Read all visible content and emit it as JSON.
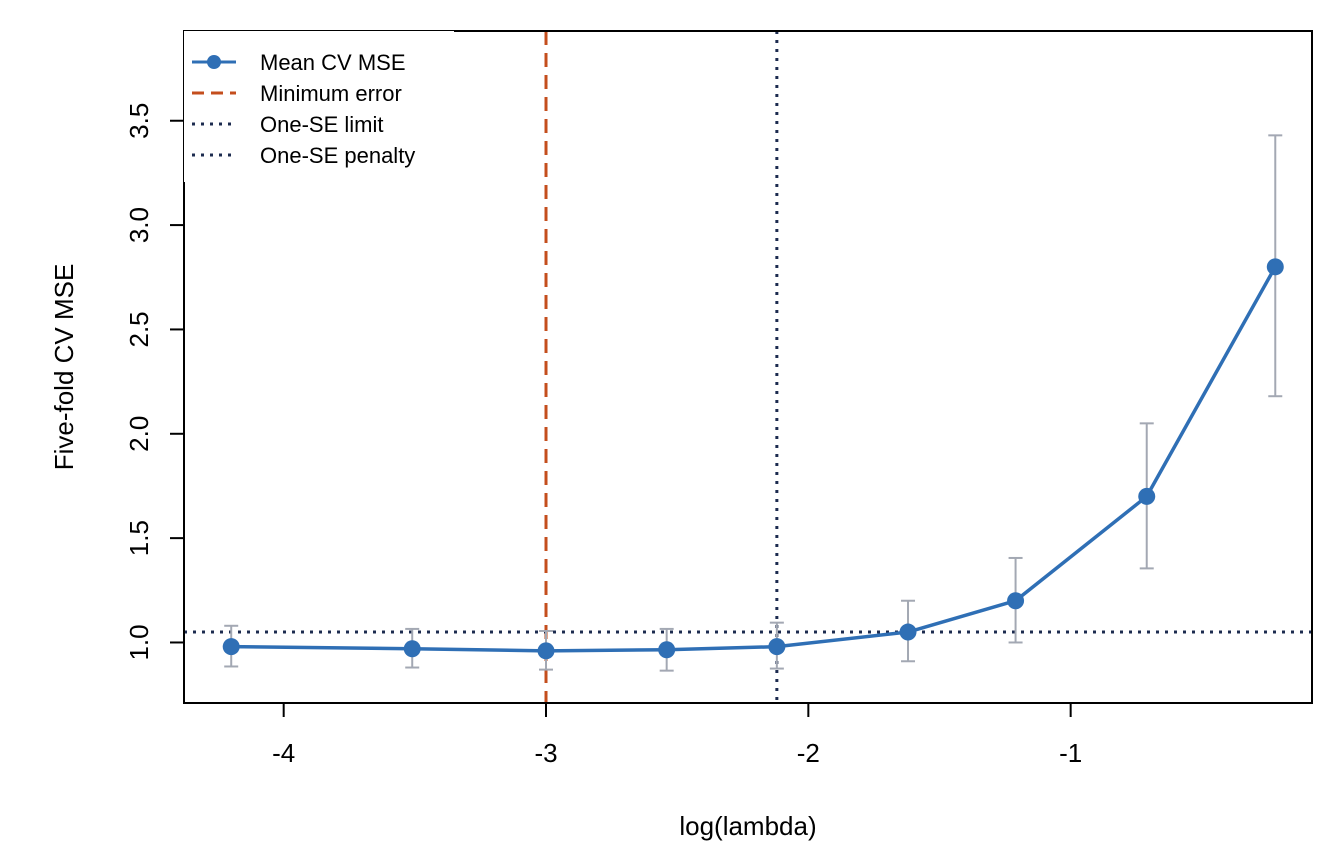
{
  "chart_data": {
    "type": "line",
    "title": "",
    "xlabel": "log(lambda)",
    "ylabel": "Five-fold CV MSE",
    "xlim": [
      -4.38,
      -0.08
    ],
    "ylim": [
      0.71,
      3.93
    ],
    "xticks": [
      -4,
      -3,
      -2,
      -1
    ],
    "xtick_labels": [
      "-4",
      "-3",
      "-2",
      "-1"
    ],
    "yticks": [
      1.0,
      1.5,
      2.0,
      2.5,
      3.0,
      3.5
    ],
    "ytick_labels": [
      "1.0",
      "1.5",
      "2.0",
      "2.5",
      "3.0",
      "3.5"
    ],
    "grid": false,
    "legend_position": "top-left",
    "series": [
      {
        "name": "Mean CV MSE",
        "color": "#2f6fb5",
        "x": [
          -4.2,
          -3.51,
          -3.0,
          -2.54,
          -2.12,
          -1.62,
          -1.21,
          -0.71,
          -0.22
        ],
        "y": [
          0.98,
          0.97,
          0.96,
          0.965,
          0.98,
          1.05,
          1.2,
          1.7,
          2.8
        ],
        "err_low": [
          0.885,
          0.88,
          0.87,
          0.865,
          0.875,
          0.91,
          1.0,
          1.355,
          2.18
        ],
        "err_high": [
          1.08,
          1.065,
          1.055,
          1.065,
          1.095,
          1.2,
          1.405,
          2.05,
          3.43
        ]
      }
    ],
    "reference_lines": [
      {
        "name": "Minimum error",
        "orientation": "vertical",
        "value": -3.0,
        "color": "#c44e1d",
        "style": "dashed"
      },
      {
        "name": "One-SE limit",
        "orientation": "horizontal",
        "value": 1.05,
        "color": "#1c2b4f",
        "style": "dotted"
      },
      {
        "name": "One-SE penalty",
        "orientation": "vertical",
        "value": -2.12,
        "color": "#1c2b4f",
        "style": "dotted"
      }
    ],
    "errorbar_color": "#a3a8b3"
  }
}
